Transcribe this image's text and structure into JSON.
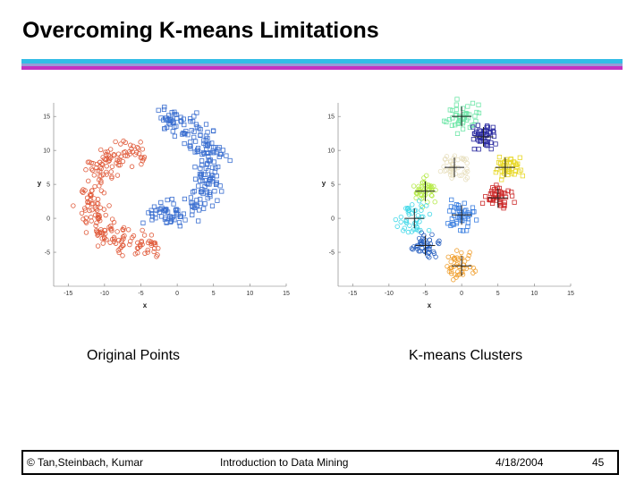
{
  "title": "Overcoming K-means Limitations",
  "captions": {
    "left": "Original Points",
    "right": "K-means Clusters"
  },
  "footer": {
    "copyright": "© Tan,Steinbach, Kumar",
    "course": "Introduction to Data Mining",
    "date": "4/18/2004",
    "page": "45"
  },
  "chart_data": [
    {
      "type": "scatter",
      "xlabel": "x",
      "ylabel": "y",
      "xlim": [
        -17,
        15
      ],
      "ylim": [
        -10,
        17
      ],
      "xticks": [
        -15,
        -10,
        -5,
        0,
        5,
        10,
        15
      ],
      "yticks": [
        15,
        10,
        5,
        0,
        -5
      ],
      "series": [
        {
          "marker": "circle",
          "color": "#e05a3a",
          "arc": {
            "cx": -5,
            "cy": 3,
            "r": 7,
            "from": 85,
            "to": 290
          }
        },
        {
          "marker": "square",
          "color": "#3b6fd0",
          "arc": {
            "cx": -2,
            "cy": 7.5,
            "r": 7,
            "from": -110,
            "to": 95
          }
        }
      ]
    },
    {
      "type": "scatter",
      "xlabel": "x",
      "ylabel": "y",
      "xlim": [
        -17,
        15
      ],
      "ylim": [
        -10,
        17
      ],
      "xticks": [
        -15,
        -10,
        -5,
        0,
        5,
        10,
        15
      ],
      "yticks": [
        15,
        10,
        5,
        0,
        -5
      ],
      "clusters": [
        {
          "color": "#6fe6a8",
          "marker": "square",
          "center": [
            0,
            15
          ],
          "spread": 2.0
        },
        {
          "color": "#2a2aa0",
          "marker": "square",
          "center": [
            3,
            12
          ],
          "spread": 1.5
        },
        {
          "color": "#e8d82a",
          "marker": "square",
          "center": [
            6,
            7.5
          ],
          "spread": 1.6
        },
        {
          "color": "#cc2a2a",
          "marker": "square",
          "center": [
            5,
            3
          ],
          "spread": 1.6
        },
        {
          "color": "#3b7fe0",
          "marker": "square",
          "center": [
            0,
            0.5
          ],
          "spread": 1.8
        },
        {
          "color": "#e8e0c0",
          "marker": "circle",
          "center": [
            -1,
            7.5
          ],
          "spread": 1.5
        },
        {
          "color": "#b6ea4a",
          "marker": "circle",
          "center": [
            -5,
            4
          ],
          "spread": 1.5
        },
        {
          "color": "#40d8e8",
          "marker": "circle",
          "center": [
            -6.5,
            0
          ],
          "spread": 1.8
        },
        {
          "color": "#2860c0",
          "marker": "circle",
          "center": [
            -5,
            -4
          ],
          "spread": 1.5
        },
        {
          "color": "#f0a030",
          "marker": "circle",
          "center": [
            0,
            -7
          ],
          "spread": 1.8
        }
      ]
    }
  ]
}
